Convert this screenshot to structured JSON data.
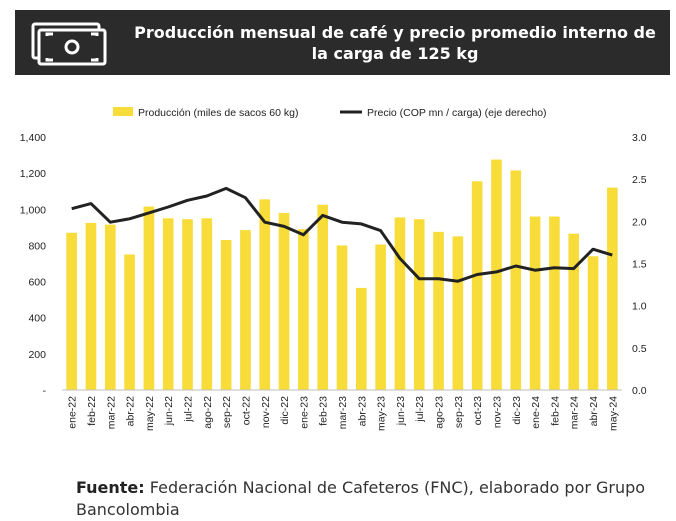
{
  "header": {
    "title": "Producción mensual de café y precio promedio interno de la carga de 125 kg",
    "icon": "money-bill-icon"
  },
  "colors": {
    "bar": "#F7DC3A",
    "line": "#222222",
    "header_bg": "#2B2B2B"
  },
  "source": {
    "label": "Fuente:",
    "text": "Federación Nacional de Cafeteros (FNC), elaborado por Grupo Bancolombia"
  },
  "chart_data": {
    "type": "bar",
    "title": "Producción mensual de café y precio promedio interno de la carga de 125 kg",
    "legend_position": "top",
    "grid": false,
    "categories": [
      "ene-22",
      "feb-22",
      "mar-22",
      "abr-22",
      "may-22",
      "jun-22",
      "jul-22",
      "ago-22",
      "sep-22",
      "oct-22",
      "nov-22",
      "dic-22",
      "ene-23",
      "feb-23",
      "mar-23",
      "abr-23",
      "may-23",
      "jun-23",
      "jul-23",
      "ago-23",
      "sep-23",
      "oct-23",
      "nov-23",
      "dic-23",
      "ene-24",
      "feb-24",
      "mar-24",
      "abr-24",
      "may-24"
    ],
    "series": [
      {
        "name": "Producción (miles de sacos 60 kg)",
        "type": "bar",
        "axis": "left",
        "values": [
          870,
          925,
          915,
          750,
          1015,
          950,
          945,
          950,
          830,
          885,
          1055,
          980,
          890,
          1025,
          800,
          565,
          805,
          955,
          945,
          875,
          850,
          1155,
          1275,
          1215,
          960,
          960,
          865,
          740,
          1120
        ]
      },
      {
        "name": "Precio (COP mn / carga) (eje derecho)",
        "type": "line",
        "axis": "right",
        "values": [
          2.15,
          2.21,
          1.99,
          2.03,
          2.1,
          2.17,
          2.25,
          2.3,
          2.39,
          2.28,
          1.99,
          1.94,
          1.84,
          2.07,
          1.99,
          1.97,
          1.89,
          1.56,
          1.32,
          1.32,
          1.29,
          1.37,
          1.4,
          1.47,
          1.42,
          1.45,
          1.44,
          1.67,
          1.6
        ]
      }
    ],
    "y_left": {
      "ylim": [
        0,
        1400
      ],
      "ticks": [
        0,
        200,
        400,
        600,
        800,
        1000,
        1200,
        1400
      ],
      "tick_labels": [
        "-",
        "200",
        "400",
        "600",
        "800",
        "1,000",
        "1,200",
        "1,400"
      ]
    },
    "y_right": {
      "ylim": [
        0,
        3.0
      ],
      "ticks": [
        0,
        0.5,
        1.0,
        1.5,
        2.0,
        2.5,
        3.0
      ],
      "tick_labels": [
        "0.0",
        "0.5",
        "1.0",
        "1.5",
        "2.0",
        "2.5",
        "3.0"
      ]
    }
  }
}
